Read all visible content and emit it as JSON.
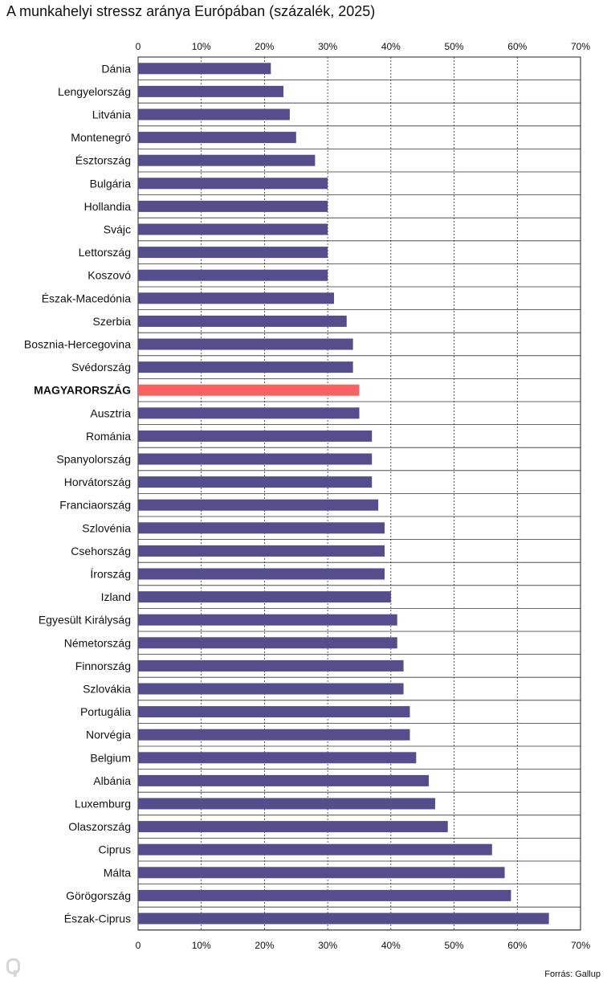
{
  "title": "A munkahelyi stressz aránya Európában (százalék, 2025)",
  "source": "Forrás: Gallup",
  "logo_text": "Q",
  "colors": {
    "bar": "#554d8c",
    "highlight": "#fb6161",
    "grid": "#333333"
  },
  "chart_data": {
    "type": "bar",
    "orientation": "horizontal",
    "title": "A munkahelyi stressz aránya Európában (százalék, 2025)",
    "xlim": [
      0,
      70
    ],
    "tick_labels": [
      "0",
      "10%",
      "20%",
      "30%",
      "40%",
      "50%",
      "60%",
      "70%"
    ],
    "grid": true,
    "highlight": "MAGYARORSZÁG",
    "categories": [
      "Dánia",
      "Lengyelország",
      "Litvánia",
      "Montenegró",
      "Észtország",
      "Bulgária",
      "Hollandia",
      "Svájc",
      "Lettország",
      "Koszovó",
      "Észak-Macedónia",
      "Szerbia",
      "Bosznia-Hercegovina",
      "Svédország",
      "MAGYARORSZÁG",
      "Ausztria",
      "Románia",
      "Spanyolország",
      "Horvátország",
      "Franciaország",
      "Szlovénia",
      "Csehország",
      "Írország",
      "Izland",
      "Egyesült Királyság",
      "Németország",
      "Finnország",
      "Szlovákia",
      "Portugália",
      "Norvégia",
      "Belgium",
      "Albánia",
      "Luxemburg",
      "Olaszország",
      "Ciprus",
      "Málta",
      "Görögország",
      "Észak-Ciprus"
    ],
    "values": [
      21,
      23,
      24,
      25,
      28,
      30,
      30,
      30,
      30,
      30,
      31,
      33,
      34,
      34,
      35,
      35,
      37,
      37,
      37,
      38,
      39,
      39,
      39,
      40,
      41,
      41,
      42,
      42,
      43,
      43,
      44,
      46,
      47,
      49,
      56,
      58,
      59,
      65
    ]
  }
}
